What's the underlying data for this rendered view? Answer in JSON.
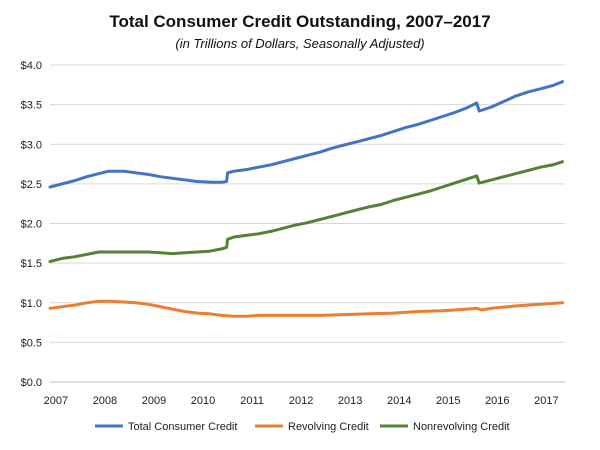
{
  "chart_data": {
    "type": "line",
    "title": "Total Consumer Credit Outstanding, 2007–2017",
    "subtitle": "(in Trillions of Dollars, Seasonally Adjusted)",
    "xlabel": "",
    "ylabel": "",
    "x_tick_labels": [
      "2007",
      "2008",
      "2009",
      "2010",
      "2011",
      "2012",
      "2013",
      "2014",
      "2015",
      "2016",
      "2017"
    ],
    "y_tick_labels": [
      "$0.0",
      "$0.5",
      "$1.0",
      "$1.5",
      "$2.0",
      "$2.5",
      "$3.0",
      "$3.5",
      "$4.0"
    ],
    "ylim": [
      0,
      4
    ],
    "xlim": [
      2007,
      2017.5
    ],
    "grid": "horizontal",
    "legend_position": "bottom",
    "series": [
      {
        "name": "Total Consumer Credit",
        "color": "#4472c4",
        "points": [
          [
            2007.0,
            2.46
          ],
          [
            2007.5,
            2.54
          ],
          [
            2007.75,
            2.59
          ],
          [
            2008.0,
            2.63
          ],
          [
            2008.2,
            2.66
          ],
          [
            2008.5,
            2.66
          ],
          [
            2008.75,
            2.64
          ],
          [
            2009.0,
            2.62
          ],
          [
            2009.25,
            2.59
          ],
          [
            2009.5,
            2.57
          ],
          [
            2009.75,
            2.55
          ],
          [
            2010.0,
            2.53
          ],
          [
            2010.3,
            2.52
          ],
          [
            2010.5,
            2.52
          ],
          [
            2010.6,
            2.53
          ],
          [
            2010.62,
            2.64
          ],
          [
            2010.75,
            2.66
          ],
          [
            2011.0,
            2.68
          ],
          [
            2011.25,
            2.71
          ],
          [
            2011.5,
            2.74
          ],
          [
            2011.75,
            2.78
          ],
          [
            2012.0,
            2.82
          ],
          [
            2012.25,
            2.86
          ],
          [
            2012.5,
            2.9
          ],
          [
            2012.75,
            2.95
          ],
          [
            2013.0,
            2.99
          ],
          [
            2013.25,
            3.03
          ],
          [
            2013.5,
            3.07
          ],
          [
            2013.75,
            3.11
          ],
          [
            2014.0,
            3.16
          ],
          [
            2014.25,
            3.21
          ],
          [
            2014.5,
            3.25
          ],
          [
            2014.75,
            3.3
          ],
          [
            2015.0,
            3.35
          ],
          [
            2015.25,
            3.4
          ],
          [
            2015.5,
            3.46
          ],
          [
            2015.7,
            3.52
          ],
          [
            2015.75,
            3.42
          ],
          [
            2016.0,
            3.47
          ],
          [
            2016.25,
            3.54
          ],
          [
            2016.5,
            3.61
          ],
          [
            2016.75,
            3.66
          ],
          [
            2017.0,
            3.7
          ],
          [
            2017.25,
            3.74
          ],
          [
            2017.45,
            3.79
          ]
        ]
      },
      {
        "name": "Revolving Credit",
        "color": "#ed7d31",
        "points": [
          [
            2007.0,
            0.93
          ],
          [
            2007.25,
            0.95
          ],
          [
            2007.5,
            0.97
          ],
          [
            2007.75,
            1.0
          ],
          [
            2008.0,
            1.02
          ],
          [
            2008.25,
            1.02
          ],
          [
            2008.5,
            1.01
          ],
          [
            2008.75,
            1.0
          ],
          [
            2009.0,
            0.98
          ],
          [
            2009.25,
            0.95
          ],
          [
            2009.5,
            0.92
          ],
          [
            2009.75,
            0.89
          ],
          [
            2010.0,
            0.87
          ],
          [
            2010.25,
            0.86
          ],
          [
            2010.5,
            0.84
          ],
          [
            2010.75,
            0.83
          ],
          [
            2011.0,
            0.83
          ],
          [
            2011.25,
            0.84
          ],
          [
            2011.5,
            0.84
          ],
          [
            2012.0,
            0.84
          ],
          [
            2012.5,
            0.84
          ],
          [
            2013.0,
            0.85
          ],
          [
            2013.5,
            0.86
          ],
          [
            2014.0,
            0.87
          ],
          [
            2014.5,
            0.89
          ],
          [
            2015.0,
            0.9
          ],
          [
            2015.5,
            0.92
          ],
          [
            2015.7,
            0.93
          ],
          [
            2015.8,
            0.91
          ],
          [
            2016.0,
            0.93
          ],
          [
            2016.5,
            0.96
          ],
          [
            2017.0,
            0.98
          ],
          [
            2017.45,
            1.0
          ]
        ]
      },
      {
        "name": "Nonrevolving Credit",
        "color": "#548235",
        "points": [
          [
            2007.0,
            1.52
          ],
          [
            2007.25,
            1.56
          ],
          [
            2007.5,
            1.58
          ],
          [
            2007.75,
            1.61
          ],
          [
            2008.0,
            1.64
          ],
          [
            2008.5,
            1.64
          ],
          [
            2009.0,
            1.64
          ],
          [
            2009.25,
            1.63
          ],
          [
            2009.5,
            1.62
          ],
          [
            2009.75,
            1.63
          ],
          [
            2010.0,
            1.64
          ],
          [
            2010.25,
            1.65
          ],
          [
            2010.5,
            1.68
          ],
          [
            2010.6,
            1.7
          ],
          [
            2010.62,
            1.8
          ],
          [
            2010.75,
            1.83
          ],
          [
            2011.0,
            1.85
          ],
          [
            2011.25,
            1.87
          ],
          [
            2011.5,
            1.9
          ],
          [
            2011.75,
            1.94
          ],
          [
            2012.0,
            1.98
          ],
          [
            2012.25,
            2.01
          ],
          [
            2012.5,
            2.05
          ],
          [
            2012.75,
            2.09
          ],
          [
            2013.0,
            2.13
          ],
          [
            2013.25,
            2.17
          ],
          [
            2013.5,
            2.21
          ],
          [
            2013.75,
            2.24
          ],
          [
            2014.0,
            2.29
          ],
          [
            2014.25,
            2.33
          ],
          [
            2014.5,
            2.37
          ],
          [
            2014.75,
            2.41
          ],
          [
            2015.0,
            2.46
          ],
          [
            2015.25,
            2.51
          ],
          [
            2015.5,
            2.56
          ],
          [
            2015.7,
            2.6
          ],
          [
            2015.75,
            2.51
          ],
          [
            2016.0,
            2.55
          ],
          [
            2016.25,
            2.59
          ],
          [
            2016.5,
            2.63
          ],
          [
            2016.75,
            2.67
          ],
          [
            2017.0,
            2.71
          ],
          [
            2017.25,
            2.74
          ],
          [
            2017.45,
            2.78
          ]
        ]
      }
    ]
  }
}
